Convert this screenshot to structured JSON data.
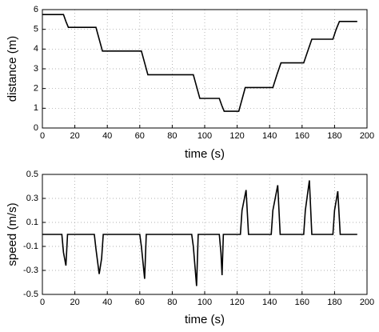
{
  "chart_data": [
    {
      "type": "line",
      "xlabel": "time (s)",
      "ylabel": "distance (m)",
      "color": "#000000",
      "grid": true,
      "xlim": [
        0,
        200
      ],
      "xticks": [
        0,
        20,
        40,
        60,
        80,
        100,
        120,
        140,
        160,
        180,
        200
      ],
      "ylim": [
        0,
        6
      ],
      "yticks": [
        0,
        1,
        2,
        3,
        4,
        5,
        6
      ],
      "x": [
        0,
        13,
        14.5,
        16,
        33,
        35,
        37,
        61,
        63,
        65,
        93,
        95,
        97,
        109,
        110.5,
        112,
        121,
        123,
        125,
        142,
        144.5,
        147,
        161,
        163.5,
        166,
        179,
        181,
        183,
        194
      ],
      "values": [
        5.75,
        5.75,
        5.4,
        5.1,
        5.1,
        4.5,
        3.9,
        3.9,
        3.3,
        2.7,
        2.7,
        2.1,
        1.5,
        1.5,
        1.15,
        0.85,
        0.85,
        1.45,
        2.05,
        2.05,
        2.7,
        3.3,
        3.3,
        3.9,
        4.5,
        4.5,
        5.0,
        5.4,
        5.4
      ]
    },
    {
      "type": "line",
      "xlabel": "time (s)",
      "ylabel": "speed (m/s)",
      "color": "#000000",
      "grid": true,
      "xlim": [
        0,
        200
      ],
      "xticks": [
        0,
        20,
        40,
        60,
        80,
        100,
        120,
        140,
        160,
        180,
        200
      ],
      "ylim": [
        -0.5,
        0.5
      ],
      "yticks": [
        -0.5,
        -0.3,
        -0.1,
        0.1,
        0.3,
        0.5
      ],
      "x": [
        0,
        12,
        13,
        14.5,
        15.5,
        32,
        33,
        35,
        36.5,
        37.5,
        60,
        61,
        63,
        64,
        92,
        93,
        95,
        96,
        109,
        110,
        110.7,
        111.5,
        122,
        123,
        125.5,
        127,
        141,
        142,
        145,
        146.5,
        161,
        162,
        164.5,
        166,
        179,
        180,
        182,
        183.5,
        194
      ],
      "values": [
        0,
        0,
        -0.15,
        -0.26,
        0,
        0,
        -0.12,
        -0.33,
        -0.2,
        0,
        0,
        -0.1,
        -0.37,
        0,
        0,
        -0.1,
        -0.43,
        0,
        0,
        -0.15,
        -0.34,
        0,
        0,
        0.2,
        0.37,
        0,
        0,
        0.2,
        0.41,
        0,
        0,
        0.2,
        0.45,
        0,
        0,
        0.2,
        0.36,
        0,
        0
      ]
    }
  ]
}
